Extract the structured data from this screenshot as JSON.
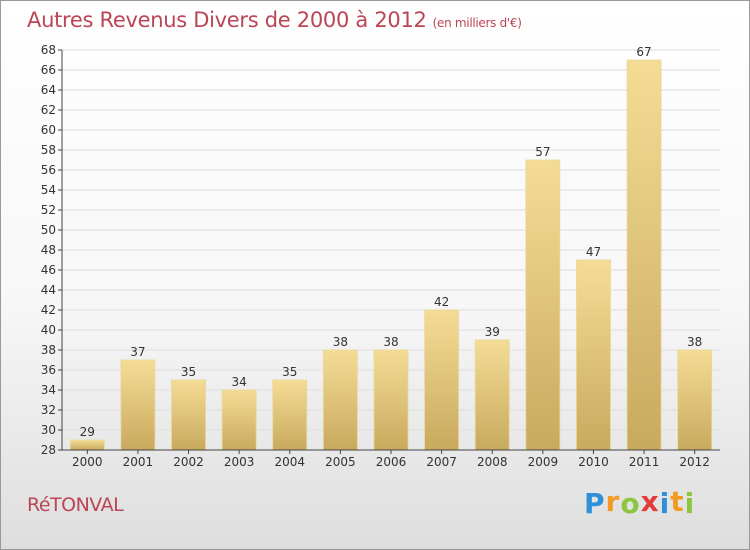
{
  "header": {
    "title": "Autres Revenus Divers de 2000 à 2012",
    "subtitle": "(en milliers d'€)"
  },
  "footer": {
    "place": "RéTONVAL",
    "logo_letters": [
      {
        "ch": "P",
        "color": "#2f8fd8"
      },
      {
        "ch": "r",
        "color": "#f39a22"
      },
      {
        "ch": "o",
        "color": "#8cc63f"
      },
      {
        "ch": "x",
        "color": "#e23a3a"
      },
      {
        "ch": "i",
        "color": "#2f8fd8"
      },
      {
        "ch": "t",
        "color": "#f39a22"
      },
      {
        "ch": "i",
        "color": "#8cc63f"
      }
    ]
  },
  "colors": {
    "title": "#bb4455",
    "bar_top": "#f5dc95",
    "bar_bottom": "#c8aa5e",
    "grid": "#dddddd",
    "axis": "#444444"
  },
  "chart_data": {
    "type": "bar",
    "categories": [
      "2000",
      "2001",
      "2002",
      "2003",
      "2004",
      "2005",
      "2006",
      "2007",
      "2008",
      "2009",
      "2010",
      "2011",
      "2012"
    ],
    "values": [
      29,
      37,
      35,
      34,
      35,
      38,
      38,
      42,
      39,
      57,
      47,
      67,
      38
    ],
    "ylim": [
      28,
      68
    ],
    "ytick_step": 2,
    "grid": true,
    "title": "Autres Revenus Divers de 2000 à 2012",
    "xlabel": "",
    "ylabel": ""
  }
}
